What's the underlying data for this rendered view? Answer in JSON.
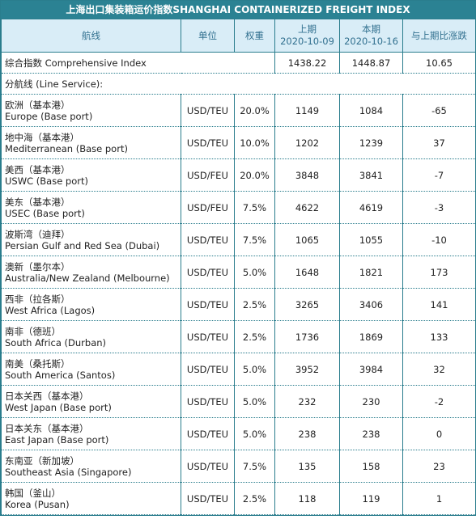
{
  "title": "上海出口集装箱运价指数SHANGHAI CONTAINERIZED FREIGHT INDEX",
  "headers": {
    "route": "航线",
    "unit": "单位",
    "weight": "权重",
    "prev": "上期",
    "prev_date": "2020-10-09",
    "curr": "本期",
    "curr_date": "2020-10-16",
    "change": "与上期比涨跌"
  },
  "composite": {
    "label": "综合指数 Comprehensive Index",
    "prev": "1438.22",
    "curr": "1448.87",
    "change": "10.65"
  },
  "section_label": "分航线 (Line Service):",
  "rows": [
    {
      "cn": "欧洲（基本港）",
      "en": "Europe (Base port)",
      "unit": "USD/TEU",
      "weight": "20.0%",
      "prev": "1149",
      "curr": "1084",
      "change": "-65"
    },
    {
      "cn": "地中海（基本港）",
      "en": "Mediterranean (Base port)",
      "unit": "USD/TEU",
      "weight": "10.0%",
      "prev": "1202",
      "curr": "1239",
      "change": "37"
    },
    {
      "cn": "美西（基本港）",
      "en": "USWC (Base port)",
      "unit": "USD/FEU",
      "weight": "20.0%",
      "prev": "3848",
      "curr": "3841",
      "change": "-7"
    },
    {
      "cn": "美东（基本港）",
      "en": "USEC (Base port)",
      "unit": "USD/FEU",
      "weight": "7.5%",
      "prev": "4622",
      "curr": "4619",
      "change": "-3"
    },
    {
      "cn": "波斯湾（迪拜）",
      "en": "Persian Gulf and Red Sea (Dubai)",
      "unit": "USD/TEU",
      "weight": "7.5%",
      "prev": "1065",
      "curr": "1055",
      "change": "-10"
    },
    {
      "cn": "澳新（墨尔本）",
      "en": "Australia/New Zealand (Melbourne)",
      "unit": "USD/TEU",
      "weight": "5.0%",
      "prev": "1648",
      "curr": "1821",
      "change": "173"
    },
    {
      "cn": "西非（拉各斯）",
      "en": "West Africa (Lagos)",
      "unit": "USD/TEU",
      "weight": "2.5%",
      "prev": "3265",
      "curr": "3406",
      "change": "141"
    },
    {
      "cn": "南非（德班）",
      "en": "South Africa (Durban)",
      "unit": "USD/TEU",
      "weight": "2.5%",
      "prev": "1736",
      "curr": "1869",
      "change": "133"
    },
    {
      "cn": "南美（桑托斯）",
      "en": "South America (Santos)",
      "unit": "USD/TEU",
      "weight": "5.0%",
      "prev": "3952",
      "curr": "3984",
      "change": "32"
    },
    {
      "cn": "日本关西（基本港）",
      "en": "West Japan (Base port)",
      "unit": "USD/TEU",
      "weight": "5.0%",
      "prev": "232",
      "curr": "230",
      "change": "-2"
    },
    {
      "cn": "日本关东（基本港）",
      "en": "East Japan (Base port)",
      "unit": "USD/TEU",
      "weight": "5.0%",
      "prev": "238",
      "curr": "238",
      "change": "0"
    },
    {
      "cn": "东南亚（新加坡）",
      "en": "Southeast Asia (Singapore)",
      "unit": "USD/TEU",
      "weight": "7.5%",
      "prev": "135",
      "curr": "158",
      "change": "23"
    },
    {
      "cn": "韩国（釜山）",
      "en": "Korea (Pusan)",
      "unit": "USD/TEU",
      "weight": "2.5%",
      "prev": "118",
      "curr": "119",
      "change": "1"
    }
  ]
}
